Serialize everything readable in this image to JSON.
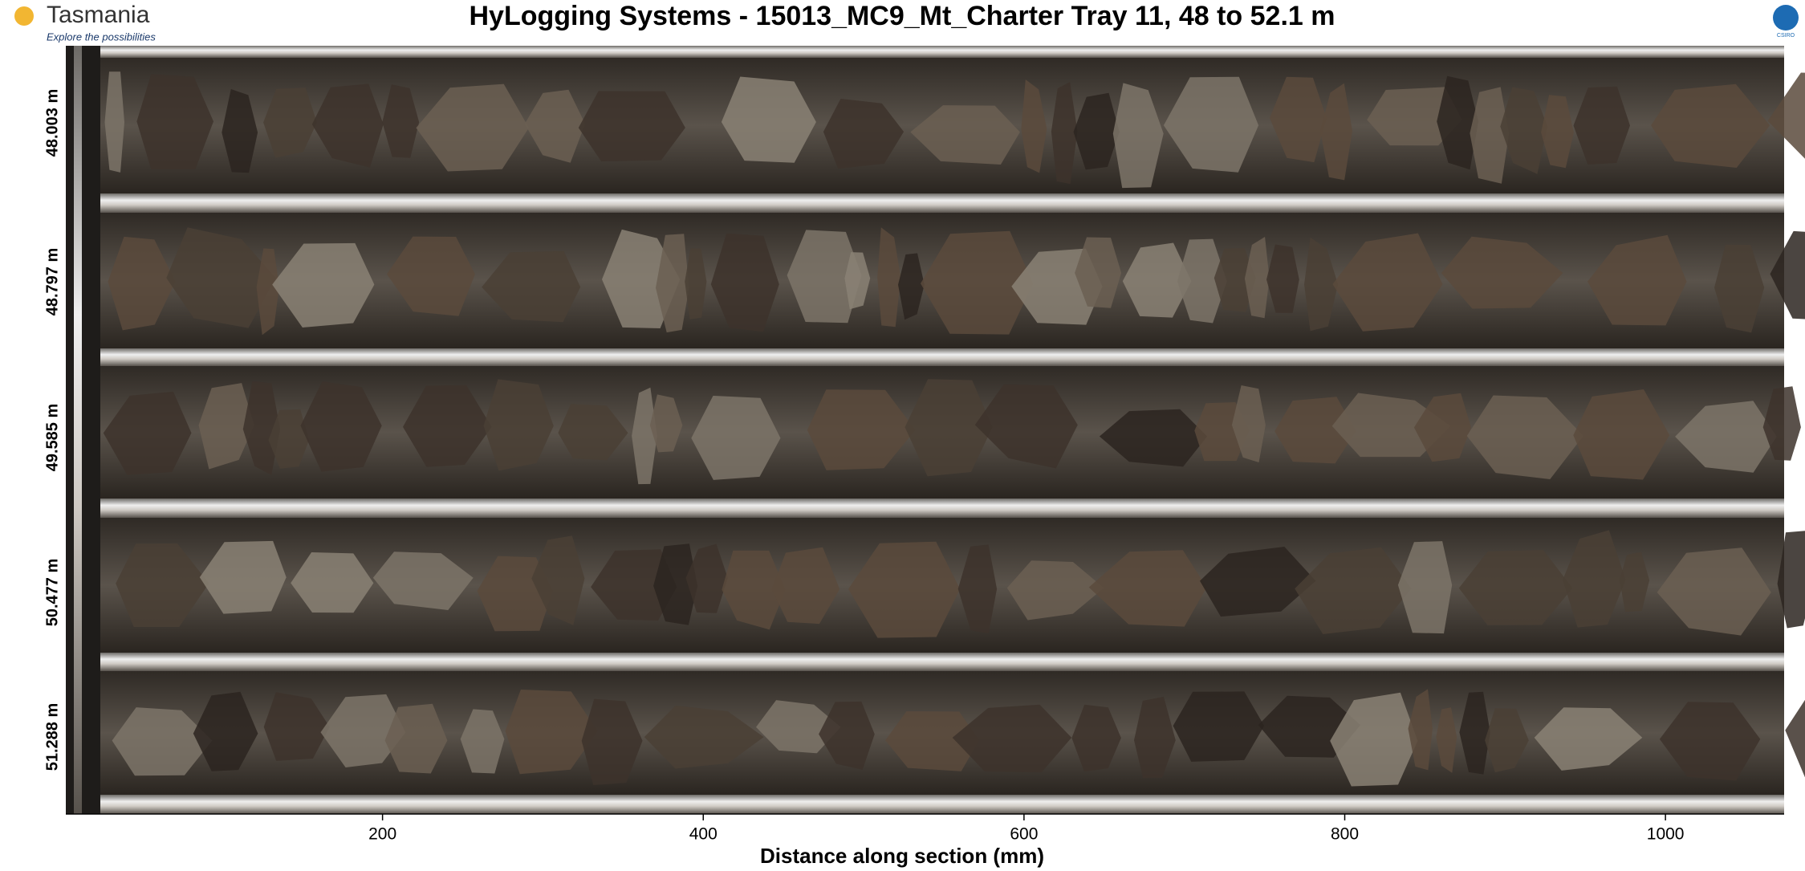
{
  "header": {
    "title": "HyLogging Systems  -  15013_MC9_Mt_Charter  Tray 11,  48 to 52.1 m",
    "logo": "Tasmania",
    "tagline": "Explore the possibilities",
    "right_logo": "CSIRO"
  },
  "y_labels": [
    "48.003 m",
    "48.797 m",
    "49.585 m",
    "50.477 m",
    "51.288 m"
  ],
  "x_axis": {
    "label": "Distance along section (mm)",
    "xlim": [
      2.5,
      1074
    ],
    "ticks": [
      200,
      400,
      600,
      800,
      1000
    ]
  }
}
